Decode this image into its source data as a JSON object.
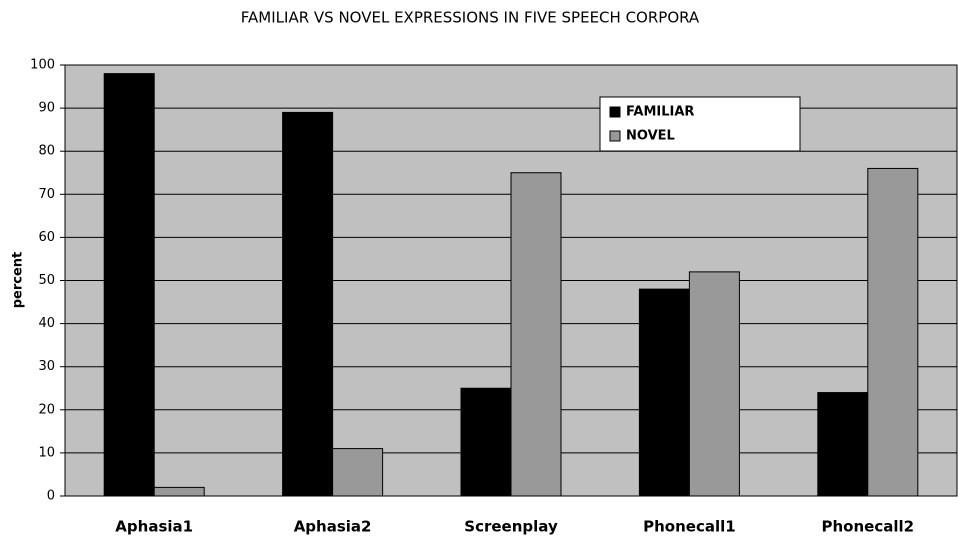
{
  "chart_data": {
    "type": "bar",
    "title": "FAMILIAR VS NOVEL EXPRESSIONS IN FIVE SPEECH CORPORA",
    "y_label": "percent",
    "categories": [
      "Aphasia1",
      "Aphasia2",
      "Screenplay",
      "Phonecall1",
      "Phonecall2"
    ],
    "series": [
      {
        "name": "FAMILIAR",
        "color": "#000000",
        "values": [
          98,
          89,
          25,
          48,
          24
        ]
      },
      {
        "name": "NOVEL",
        "color": "#999999",
        "values": [
          2,
          11,
          75,
          52,
          76
        ]
      }
    ],
    "ylim": [
      0,
      100
    ],
    "yticks": [
      0,
      10,
      20,
      30,
      40,
      50,
      60,
      70,
      80,
      90,
      100
    ],
    "grid": true,
    "legend": "upper right"
  }
}
